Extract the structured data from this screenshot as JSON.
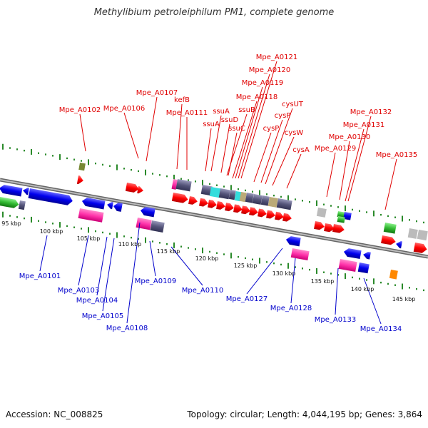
{
  "title": "Methylibium petroleiphilum PM1, complete genome",
  "footer": {
    "accession": "Accession: NC_008825",
    "summary": "Topology: circular; Length: 4,044,195 bp; Genes: 3,864"
  },
  "kbp_labels": [
    "95 kbp",
    "100 kbp",
    "105 kbp",
    "110 kbp",
    "115 kbp",
    "120 kbp",
    "125 kbp",
    "130 kbp",
    "135 kbp",
    "140 kbp",
    "145 kbp"
  ],
  "red_labels": [
    "Mpe_A0121",
    "Mpe_A0120",
    "Mpe_A0119",
    "Mpe_A0118",
    "cysUT",
    "Mpe_A0107",
    "ssuB",
    "cysP",
    "Mpe_A0132",
    "Mpe_A0102",
    "Mpe_A0106",
    "kefB",
    "Mpe_A0111",
    "ssuA",
    "ssuD",
    "ssuA",
    "ssuC",
    "cysP",
    "cysW",
    "Mpe_A0131",
    "Mpe_A0130",
    "Mpe_A0129",
    "cysA",
    "Mpe_A0135"
  ],
  "blue_labels": [
    "Mpe_A0101",
    "Mpe_A0103",
    "Mpe_A0104",
    "Mpe_A0105",
    "Mpe_A0108",
    "Mpe_A0109",
    "Mpe_A0110",
    "Mpe_A0127",
    "Mpe_A0128",
    "Mpe_A0133",
    "Mpe_A0134"
  ],
  "colors": {
    "forward_label": "#e00000",
    "reverse_label": "#0000cc",
    "backbone": "#888888",
    "tick": "#2a8a2a",
    "gene_red": "#ff0000",
    "gene_blue": "#0000ee",
    "gene_green": "#33bb33",
    "gene_pink": "#ff33aa",
    "gene_purple": "#55557a",
    "gene_cyan": "#33dddd",
    "gene_tan": "#bbaa77",
    "gene_grey": "#bbbbbb",
    "gene_orange": "#ff8800",
    "gene_olive": "#778833"
  }
}
